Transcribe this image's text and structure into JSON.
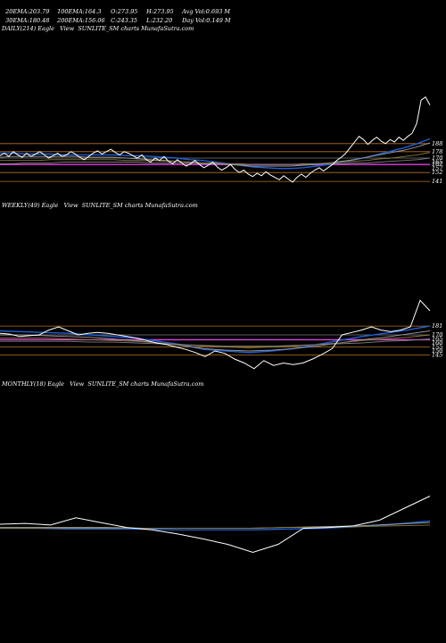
{
  "header": {
    "row1": [
      {
        "label": "20EMA:",
        "value": "203.79"
      },
      {
        "label": "100EMA:",
        "value": "164.3"
      },
      {
        "label": "O:",
        "value": "273.95"
      },
      {
        "label": "H:",
        "value": "273.95"
      },
      {
        "label": "Avg Vol:",
        "value": "0.693 M"
      }
    ],
    "row2": [
      {
        "label": "30EMA:",
        "value": "180.48"
      },
      {
        "label": "200EMA:",
        "value": "156.06"
      },
      {
        "label": "C:",
        "value": "243.35"
      },
      {
        "label": "L:",
        "value": "232.20"
      },
      {
        "label": "Day Vol:",
        "value": "0.149 M"
      }
    ]
  },
  "panels": {
    "daily": {
      "label": "DAILY(214) Eagle   View  SUNLITE_SM charts MunafaSutra.com"
    },
    "weekly": {
      "label": "WEEKLY(49) Eagle   View  SUNLITE_SM charts MunafaSutra.com"
    },
    "monthly": {
      "label": "MONTHLY(18) Eagle   View  SUNLITE_SM charts MunafaSutra.com"
    }
  },
  "colors": {
    "background": "#000000",
    "price": "#ffffff",
    "ema_blue": "#1f5fd6",
    "ema_gray": "#9a9a9a",
    "ema_olive": "#8a7a3a",
    "level_orange": "#b8741f",
    "level_magenta": "#e040e0",
    "level_gray": "#7a7a7a"
  },
  "chart_data": [
    {
      "type": "line",
      "panel": "daily",
      "ylim": [
        100,
        300
      ],
      "price": [
        173,
        176,
        172,
        178,
        174,
        171,
        176,
        172,
        175,
        178,
        174,
        170,
        173,
        176,
        172,
        174,
        178,
        175,
        171,
        168,
        172,
        176,
        179,
        175,
        178,
        181,
        177,
        174,
        178,
        176,
        173,
        170,
        174,
        168,
        165,
        170,
        167,
        172,
        166,
        163,
        168,
        164,
        160,
        163,
        167,
        162,
        158,
        161,
        165,
        159,
        155,
        158,
        162,
        156,
        152,
        155,
        150,
        147,
        151,
        148,
        153,
        149,
        146,
        143,
        148,
        144,
        140,
        146,
        150,
        146,
        151,
        155,
        158,
        154,
        158,
        162,
        167,
        171,
        176,
        183,
        190,
        197,
        193,
        187,
        192,
        196,
        191,
        188,
        193,
        190,
        196,
        192,
        197,
        201,
        213,
        242,
        246,
        236
      ],
      "ema_series": [
        {
          "values": [
            176,
            176,
            175,
            175,
            175,
            174,
            174,
            174,
            174,
            174,
            173,
            173,
            172,
            171,
            170,
            168,
            167,
            165,
            163,
            161,
            159,
            158,
            157,
            157,
            158,
            160,
            162,
            165,
            168,
            171,
            175,
            179,
            183,
            188,
            194
          ]
        },
        {
          "values": [
            171,
            172,
            172,
            172,
            172,
            172,
            172,
            171,
            171,
            171,
            170,
            169,
            168,
            167,
            166,
            165,
            164,
            163,
            162,
            161,
            160,
            160,
            160,
            160,
            161,
            162,
            164,
            166,
            168,
            171,
            174,
            177,
            180,
            184,
            189
          ]
        },
        {
          "values": [
            167,
            167,
            167,
            167,
            168,
            168,
            168,
            168,
            168,
            168,
            167,
            167,
            167,
            166,
            166,
            165,
            164,
            164,
            163,
            163,
            162,
            162,
            162,
            162,
            163,
            163,
            164,
            165,
            166,
            167,
            169,
            170,
            172,
            174,
            177
          ]
        },
        {
          "values": [
            163,
            163,
            164,
            164,
            164,
            165,
            165,
            165,
            165,
            165,
            165,
            165,
            164,
            164,
            164,
            164,
            163,
            163,
            163,
            162,
            162,
            162,
            162,
            162,
            162,
            163,
            163,
            163,
            164,
            164,
            165,
            166,
            167,
            168,
            170
          ]
        }
      ],
      "levels": [
        {
          "value": 188,
          "color": "orange"
        },
        {
          "value": 178,
          "color": "orange"
        },
        {
          "value": 170,
          "color": "gray"
        },
        {
          "value": 162,
          "color": "magenta"
        },
        {
          "value": 152,
          "color": "orange"
        },
        {
          "value": 141,
          "color": "orange"
        }
      ],
      "tick_labels": [
        "188",
        "178",
        "170",
        "165",
        "162",
        "157",
        "152",
        "141"
      ]
    },
    {
      "type": "line",
      "panel": "weekly",
      "ylim": [
        100,
        300
      ],
      "price": [
        172,
        171,
        168,
        169,
        170,
        176,
        180,
        175,
        170,
        172,
        173,
        172,
        170,
        168,
        166,
        163,
        160,
        158,
        155,
        152,
        148,
        143,
        150,
        147,
        140,
        135,
        128,
        138,
        132,
        135,
        133,
        135,
        140,
        146,
        153,
        170,
        173,
        176,
        180,
        176,
        174,
        176,
        180,
        213,
        200
      ],
      "ema_series": [
        {
          "values": [
            175,
            174,
            173,
            172,
            170,
            168,
            166,
            162,
            158,
            152,
            150,
            148,
            150,
            153,
            158,
            163,
            168,
            172,
            176,
            181
          ]
        },
        {
          "values": [
            170,
            170,
            169,
            168,
            167,
            165,
            163,
            160,
            157,
            153,
            151,
            150,
            151,
            153,
            156,
            160,
            164,
            167,
            171,
            175
          ]
        },
        {
          "values": [
            166,
            166,
            166,
            165,
            164,
            163,
            162,
            160,
            158,
            156,
            155,
            154,
            155,
            156,
            158,
            160,
            163,
            165,
            167,
            170
          ]
        },
        {
          "values": [
            162,
            162,
            162,
            162,
            161,
            161,
            160,
            159,
            158,
            157,
            156,
            156,
            156,
            157,
            158,
            159,
            160,
            162,
            163,
            165
          ]
        }
      ],
      "levels": [
        {
          "value": 181,
          "color": "orange"
        },
        {
          "value": 170,
          "color": "gray"
        },
        {
          "value": 164,
          "color": "magenta"
        },
        {
          "value": 155,
          "color": "orange"
        },
        {
          "value": 145,
          "color": "orange"
        }
      ],
      "tick_labels": [
        "181",
        "170",
        "165",
        "160",
        "155",
        "150",
        "145"
      ]
    },
    {
      "type": "line",
      "panel": "monthly",
      "ylim": [
        100,
        300
      ],
      "price": [
        170,
        171,
        169,
        178,
        172,
        166,
        163,
        158,
        152,
        145,
        135,
        145,
        165,
        166,
        168,
        175,
        190,
        205
      ],
      "ema_series": [
        {
          "values": [
            165,
            165,
            164,
            164,
            164,
            163,
            163,
            163,
            164,
            165,
            167,
            170,
            174
          ]
        },
        {
          "values": [
            166,
            166,
            166,
            166,
            165,
            165,
            165,
            165,
            166,
            167,
            168,
            170,
            172
          ]
        },
        {
          "values": [
            165,
            165,
            165,
            165,
            165,
            165,
            165,
            165,
            166,
            166,
            167,
            168,
            169
          ]
        }
      ]
    }
  ]
}
